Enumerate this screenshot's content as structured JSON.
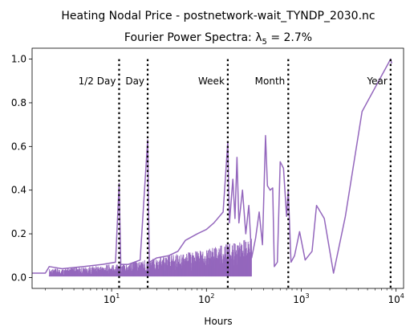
{
  "chart_data": {
    "type": "line",
    "title": "Heating Nodal Price - postnetwork-wait_TYNDP_2030.nc",
    "subtitle": "Fourier Power Spectra: λ",
    "subtitle_sub": "5",
    "subtitle_suffix": " = 2.7%",
    "xlabel": "Hours",
    "ylabel": "",
    "xscale": "log",
    "xlim": [
      1.45,
      12000
    ],
    "ylim": [
      -0.05,
      1.05
    ],
    "grid": false,
    "line_color": "#9467bd",
    "x_tick_labels": [
      {
        "value": 10,
        "base": "10",
        "exp": "1"
      },
      {
        "value": 100,
        "base": "10",
        "exp": "2"
      },
      {
        "value": 1000,
        "base": "10",
        "exp": "3"
      },
      {
        "value": 10000,
        "base": "10",
        "exp": "4"
      }
    ],
    "y_ticks": [
      0.0,
      0.2,
      0.4,
      0.6,
      0.8,
      1.0
    ],
    "y_tick_labels": [
      "0.0",
      "0.2",
      "0.4",
      "0.6",
      "0.8",
      "1.0"
    ],
    "markers": [
      {
        "label": "1/2 Day",
        "x": 12
      },
      {
        "label": "Day",
        "x": 24
      },
      {
        "label": "Week",
        "x": 168
      },
      {
        "label": "Month",
        "x": 730
      },
      {
        "label": "Year",
        "x": 8760
      }
    ],
    "series": [
      {
        "values": [
          [
            1.45,
            0.02
          ],
          [
            2.0,
            0.02
          ],
          [
            2.2,
            0.05
          ],
          [
            3.0,
            0.04
          ],
          [
            5.0,
            0.05
          ],
          [
            8.0,
            0.06
          ],
          [
            11.0,
            0.07
          ],
          [
            12.0,
            0.43
          ],
          [
            12.5,
            0.06
          ],
          [
            15.0,
            0.06
          ],
          [
            20.0,
            0.08
          ],
          [
            24.0,
            0.63
          ],
          [
            25.0,
            0.07
          ],
          [
            30.0,
            0.09
          ],
          [
            40.0,
            0.1
          ],
          [
            50.0,
            0.12
          ],
          [
            60.0,
            0.17
          ],
          [
            80.0,
            0.2
          ],
          [
            100.0,
            0.22
          ],
          [
            120.0,
            0.25
          ],
          [
            150.0,
            0.3
          ],
          [
            168.0,
            0.62
          ],
          [
            175.0,
            0.25
          ],
          [
            190.0,
            0.45
          ],
          [
            200.0,
            0.27
          ],
          [
            210.0,
            0.55
          ],
          [
            220.0,
            0.25
          ],
          [
            240.0,
            0.4
          ],
          [
            260.0,
            0.2
          ],
          [
            280.0,
            0.33
          ],
          [
            300.0,
            0.09
          ],
          [
            330.0,
            0.18
          ],
          [
            360.0,
            0.3
          ],
          [
            390.0,
            0.15
          ],
          [
            420.0,
            0.65
          ],
          [
            440.0,
            0.42
          ],
          [
            470.0,
            0.4
          ],
          [
            500.0,
            0.41
          ],
          [
            520.0,
            0.05
          ],
          [
            560.0,
            0.07
          ],
          [
            600.0,
            0.53
          ],
          [
            650.0,
            0.5
          ],
          [
            700.0,
            0.28
          ],
          [
            730.0,
            0.4
          ],
          [
            780.0,
            0.07
          ],
          [
            850.0,
            0.1
          ],
          [
            960.0,
            0.21
          ],
          [
            1100.0,
            0.08
          ],
          [
            1300.0,
            0.12
          ],
          [
            1450.0,
            0.33
          ],
          [
            1750.0,
            0.27
          ],
          [
            2190.0,
            0.02
          ],
          [
            2920.0,
            0.28
          ],
          [
            4380.0,
            0.76
          ],
          [
            8760.0,
            1.0
          ],
          [
            9000.0,
            0.98
          ]
        ]
      }
    ]
  }
}
